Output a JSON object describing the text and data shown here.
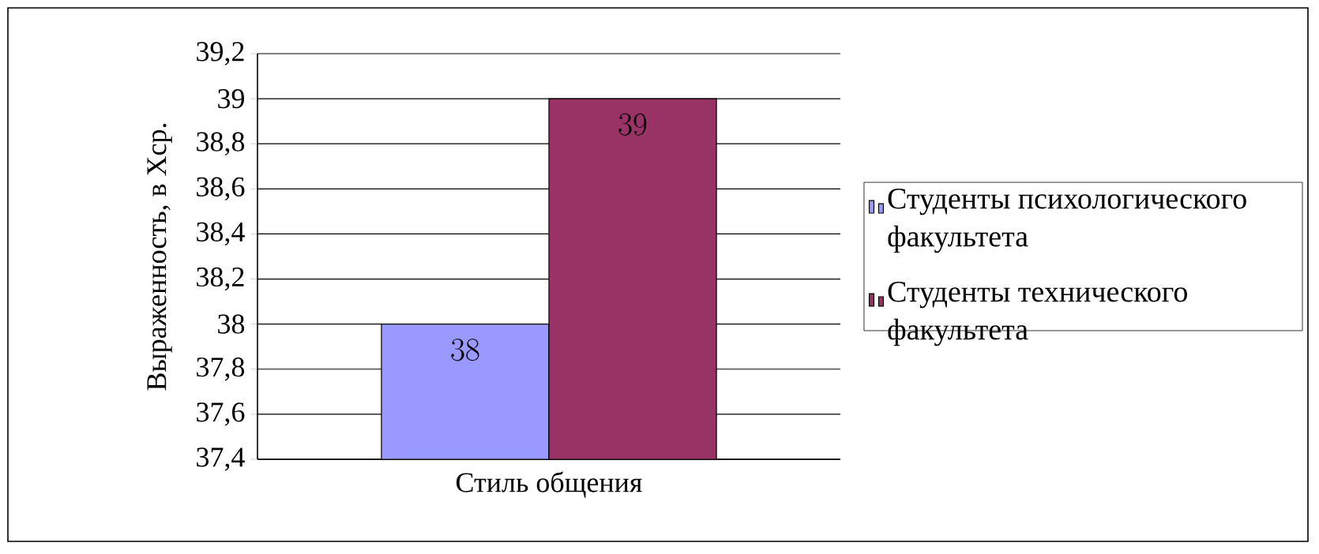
{
  "chart_data": {
    "type": "bar",
    "ylabel": "Выраженность, в Хср.",
    "categories": [
      "Стиль общения"
    ],
    "series": [
      {
        "name": "Студенты психологического факультета",
        "color": "#9999ff",
        "values": [
          38
        ]
      },
      {
        "name": "Студенты технического факультета",
        "color": "#993366",
        "values": [
          39
        ]
      }
    ],
    "ylim": [
      37.4,
      39.2
    ],
    "yticks": [
      {
        "value": 37.4,
        "label": "37,4"
      },
      {
        "value": 37.6,
        "label": "37,6"
      },
      {
        "value": 37.8,
        "label": "37,8"
      },
      {
        "value": 38,
        "label": "38"
      },
      {
        "value": 38.2,
        "label": "38,2"
      },
      {
        "value": 38.4,
        "label": "38,4"
      },
      {
        "value": 38.6,
        "label": "38,6"
      },
      {
        "value": 38.8,
        "label": "38,8"
      },
      {
        "value": 39,
        "label": "39"
      },
      {
        "value": 39.2,
        "label": "39,2"
      }
    ],
    "grid": "y",
    "legend": "right",
    "data_labels": true
  }
}
